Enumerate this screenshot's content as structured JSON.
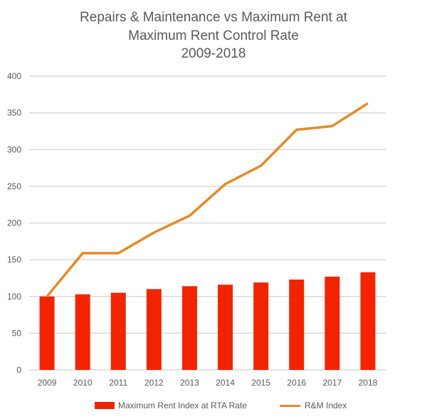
{
  "chart_data": {
    "type": "bar+line",
    "title": [
      "Repairs & Maintenance vs Maximum Rent at",
      "Maximum Rent Control Rate",
      "2009-2018"
    ],
    "categories": [
      "2009",
      "2010",
      "2011",
      "2012",
      "2013",
      "2014",
      "2015",
      "2016",
      "2017",
      "2018"
    ],
    "series": [
      {
        "name": "Maximum Rent Index at RTA Rate",
        "type": "bar",
        "color": "#F22400",
        "values": [
          100,
          103,
          105,
          110,
          114,
          116,
          119,
          123,
          127,
          133
        ]
      },
      {
        "name": "R&M Index",
        "type": "line",
        "color": "#E48A2A",
        "values": [
          100,
          159,
          159,
          187,
          210,
          253,
          278,
          327,
          332,
          363
        ]
      }
    ],
    "ylim": [
      0,
      400
    ],
    "yticks": [
      "0",
      "50",
      "100",
      "150",
      "200",
      "250",
      "300",
      "350",
      "400"
    ],
    "grid": true,
    "legend": "bottom"
  }
}
